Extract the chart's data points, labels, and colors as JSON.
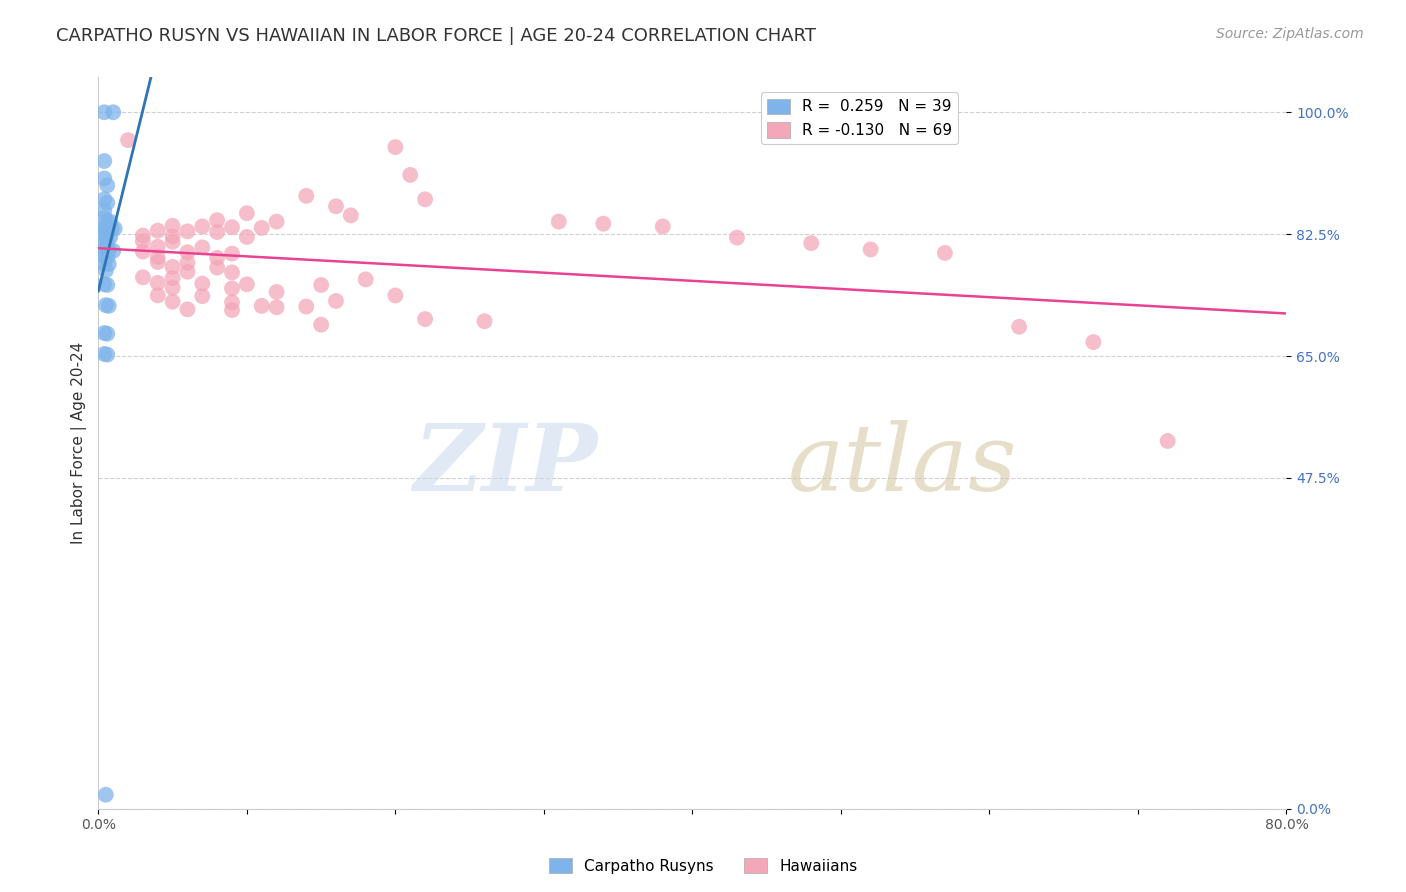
{
  "title": "CARPATHO RUSYN VS HAWAIIAN IN LABOR FORCE | AGE 20-24 CORRELATION CHART",
  "source": "Source: ZipAtlas.com",
  "ylabel": "In Labor Force | Age 20-24",
  "xlim": [
    0.0,
    0.8
  ],
  "ylim": [
    0.0,
    1.05
  ],
  "yticks": [
    0.0,
    0.475,
    0.65,
    0.825,
    1.0
  ],
  "ytick_labels": [
    "0.0%",
    "47.5%",
    "65.0%",
    "82.5%",
    "100.0%"
  ],
  "xticks": [
    0.0,
    0.1,
    0.2,
    0.3,
    0.4,
    0.5,
    0.6,
    0.7,
    0.8
  ],
  "xtick_labels": [
    "0.0%",
    "",
    "",
    "",
    "",
    "",
    "",
    "",
    "80.0%"
  ],
  "watermark_zip": "ZIP",
  "watermark_atlas": "atlas",
  "legend_entries": [
    {
      "label": "R =  0.259   N = 39",
      "color": "#7eb4ea"
    },
    {
      "label": "R = -0.130   N = 69",
      "color": "#f4a7b9"
    }
  ],
  "blue_scatter_color": "#7eb4ea",
  "pink_scatter_color": "#f4a7b9",
  "blue_line_color": "#2e75b6",
  "pink_line_color": "#e84393",
  "carpatho_rusyn_points": [
    [
      0.004,
      1.0
    ],
    [
      0.01,
      1.0
    ],
    [
      0.004,
      0.93
    ],
    [
      0.004,
      0.905
    ],
    [
      0.006,
      0.895
    ],
    [
      0.004,
      0.875
    ],
    [
      0.006,
      0.87
    ],
    [
      0.004,
      0.858
    ],
    [
      0.004,
      0.848
    ],
    [
      0.006,
      0.843
    ],
    [
      0.008,
      0.843
    ],
    [
      0.004,
      0.833
    ],
    [
      0.005,
      0.833
    ],
    [
      0.006,
      0.833
    ],
    [
      0.007,
      0.833
    ],
    [
      0.009,
      0.833
    ],
    [
      0.011,
      0.833
    ],
    [
      0.004,
      0.823
    ],
    [
      0.006,
      0.822
    ],
    [
      0.008,
      0.821
    ],
    [
      0.004,
      0.813
    ],
    [
      0.006,
      0.812
    ],
    [
      0.004,
      0.803
    ],
    [
      0.007,
      0.802
    ],
    [
      0.01,
      0.801
    ],
    [
      0.004,
      0.793
    ],
    [
      0.006,
      0.792
    ],
    [
      0.004,
      0.783
    ],
    [
      0.007,
      0.782
    ],
    [
      0.005,
      0.773
    ],
    [
      0.004,
      0.753
    ],
    [
      0.006,
      0.752
    ],
    [
      0.005,
      0.723
    ],
    [
      0.007,
      0.722
    ],
    [
      0.004,
      0.683
    ],
    [
      0.006,
      0.682
    ],
    [
      0.004,
      0.653
    ],
    [
      0.006,
      0.652
    ],
    [
      0.005,
      0.02
    ]
  ],
  "hawaiian_points": [
    [
      0.02,
      0.96
    ],
    [
      0.2,
      0.95
    ],
    [
      0.21,
      0.91
    ],
    [
      0.14,
      0.88
    ],
    [
      0.22,
      0.875
    ],
    [
      0.16,
      0.865
    ],
    [
      0.1,
      0.855
    ],
    [
      0.17,
      0.852
    ],
    [
      0.08,
      0.845
    ],
    [
      0.12,
      0.843
    ],
    [
      0.05,
      0.837
    ],
    [
      0.07,
      0.836
    ],
    [
      0.09,
      0.835
    ],
    [
      0.11,
      0.834
    ],
    [
      0.04,
      0.83
    ],
    [
      0.06,
      0.829
    ],
    [
      0.08,
      0.828
    ],
    [
      0.03,
      0.823
    ],
    [
      0.05,
      0.822
    ],
    [
      0.1,
      0.821
    ],
    [
      0.03,
      0.815
    ],
    [
      0.05,
      0.814
    ],
    [
      0.04,
      0.807
    ],
    [
      0.07,
      0.806
    ],
    [
      0.03,
      0.8
    ],
    [
      0.06,
      0.799
    ],
    [
      0.09,
      0.797
    ],
    [
      0.04,
      0.792
    ],
    [
      0.08,
      0.791
    ],
    [
      0.04,
      0.785
    ],
    [
      0.06,
      0.784
    ],
    [
      0.05,
      0.778
    ],
    [
      0.08,
      0.777
    ],
    [
      0.06,
      0.771
    ],
    [
      0.09,
      0.77
    ],
    [
      0.03,
      0.763
    ],
    [
      0.05,
      0.762
    ],
    [
      0.04,
      0.755
    ],
    [
      0.07,
      0.754
    ],
    [
      0.1,
      0.753
    ],
    [
      0.05,
      0.748
    ],
    [
      0.09,
      0.747
    ],
    [
      0.12,
      0.742
    ],
    [
      0.15,
      0.752
    ],
    [
      0.18,
      0.76
    ],
    [
      0.04,
      0.737
    ],
    [
      0.07,
      0.736
    ],
    [
      0.05,
      0.728
    ],
    [
      0.09,
      0.727
    ],
    [
      0.11,
      0.722
    ],
    [
      0.14,
      0.721
    ],
    [
      0.16,
      0.729
    ],
    [
      0.2,
      0.737
    ],
    [
      0.06,
      0.717
    ],
    [
      0.09,
      0.716
    ],
    [
      0.12,
      0.72
    ],
    [
      0.15,
      0.695
    ],
    [
      0.22,
      0.703
    ],
    [
      0.26,
      0.7
    ],
    [
      0.31,
      0.843
    ],
    [
      0.34,
      0.84
    ],
    [
      0.38,
      0.836
    ],
    [
      0.43,
      0.82
    ],
    [
      0.48,
      0.812
    ],
    [
      0.52,
      0.803
    ],
    [
      0.57,
      0.798
    ],
    [
      0.62,
      0.692
    ],
    [
      0.67,
      0.67
    ],
    [
      0.72,
      0.528
    ]
  ],
  "grid_color": "#cccccc",
  "background_color": "#ffffff",
  "title_fontsize": 13,
  "axis_label_fontsize": 11,
  "tick_fontsize": 10,
  "legend_fontsize": 11,
  "source_fontsize": 10
}
